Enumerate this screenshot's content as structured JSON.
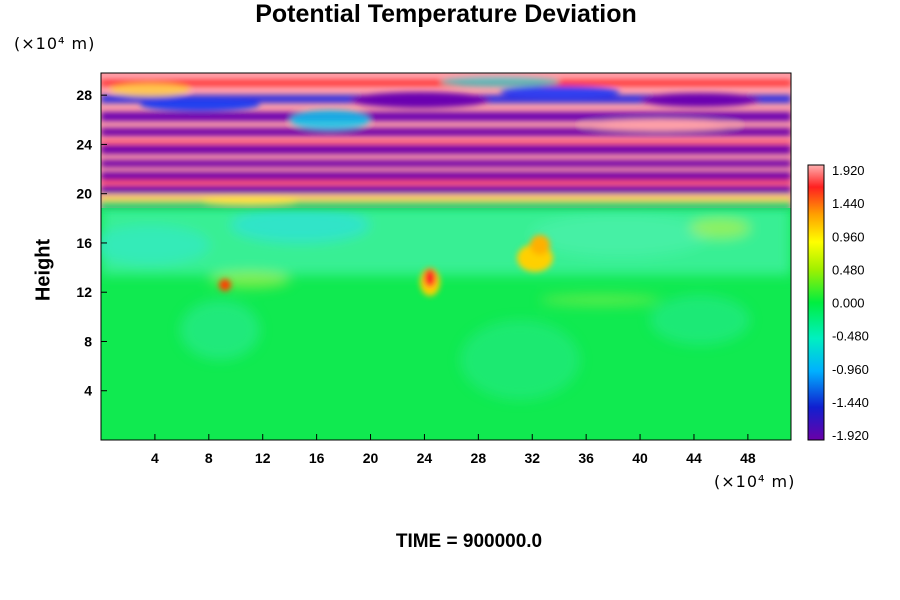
{
  "title": "Potential Temperature Deviation",
  "y_unit": "(×10⁴ m)",
  "x_unit": "(×10⁴ m)",
  "ylabel": "Height",
  "time_label": "TIME = 900000.0",
  "chart_data": {
    "type": "heatmap",
    "title": "Potential Temperature Deviation",
    "xlabel": "",
    "ylabel": "Height",
    "x_unit": "(×10⁴ m)",
    "y_unit": "(×10⁴ m)",
    "xlim": [
      0,
      51.2
    ],
    "ylim": [
      0,
      29.8
    ],
    "x_ticks": [
      4,
      8,
      12,
      16,
      20,
      24,
      28,
      32,
      36,
      40,
      44,
      48
    ],
    "y_ticks": [
      4,
      8,
      12,
      16,
      20,
      24,
      28
    ],
    "colorbar": {
      "range": [
        -1.92,
        1.92
      ],
      "tick_labels": [
        "1.920",
        "1.440",
        "0.960",
        "0.480",
        "0.000",
        "-0.480",
        "-0.960",
        "-1.440",
        "-1.920"
      ],
      "levels": 32
    },
    "features": [
      {
        "label": "stratified layers",
        "y_range": [
          19,
          29.8
        ],
        "value_range": [
          -1.92,
          1.92
        ]
      },
      {
        "label": "troposphere",
        "y_range": [
          0,
          19
        ],
        "value_range": [
          -0.6,
          0.3
        ]
      },
      {
        "label": "warm plume",
        "x": 24,
        "y": 13,
        "value": 1.6
      },
      {
        "label": "warm plume",
        "x": 32,
        "y": 15,
        "value": 0.9
      }
    ],
    "annotation": "TIME = 900000.0"
  }
}
